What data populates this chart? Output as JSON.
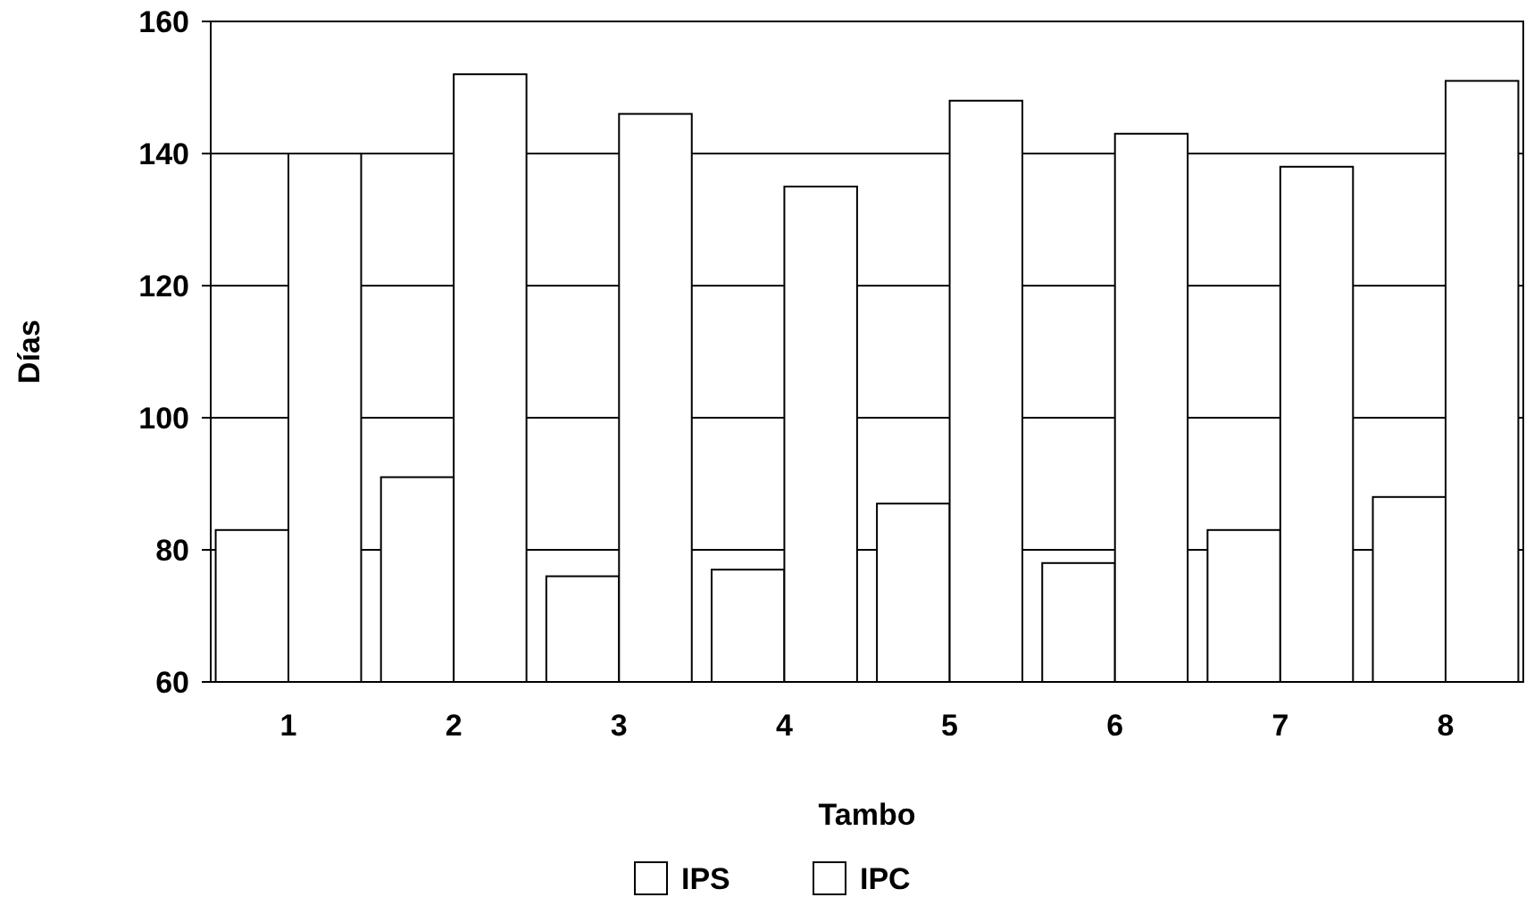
{
  "chart_data": {
    "type": "bar",
    "xlabel": "Tambo",
    "ylabel": "Días",
    "categories": [
      "1",
      "2",
      "3",
      "4",
      "5",
      "6",
      "7",
      "8"
    ],
    "series": [
      {
        "name": "IPS",
        "color": "#ffffff",
        "values": [
          83,
          91,
          76,
          77,
          87,
          78,
          83,
          88
        ]
      },
      {
        "name": "IPC",
        "color": "#ffffff",
        "values": [
          140,
          152,
          146,
          135,
          148,
          143,
          138,
          151
        ]
      }
    ],
    "ylim": [
      60,
      160
    ],
    "yticks": [
      60,
      80,
      100,
      120,
      140,
      160
    ],
    "grid": "y",
    "legend": "bottom"
  }
}
